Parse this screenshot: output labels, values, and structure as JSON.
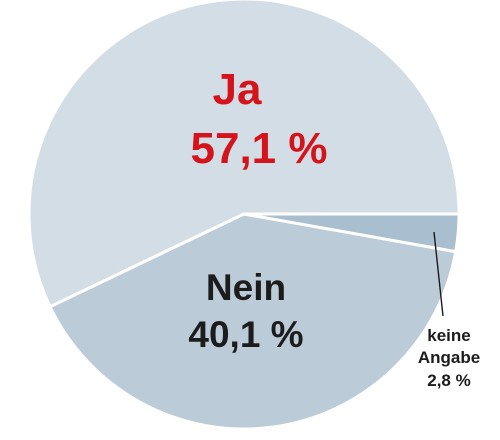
{
  "chart_data": {
    "type": "pie",
    "slices": [
      {
        "label": "Ja",
        "value": 57.1,
        "value_text": "57,1 %",
        "color": "#d3dde6",
        "label_color": "#d4131b"
      },
      {
        "label": "Nein",
        "value": 40.1,
        "value_text": "40,1 %",
        "color": "#bccbd8",
        "label_color": "#1c1c1c"
      },
      {
        "label": "keine Angabe",
        "label_lines": [
          "keine",
          "Angabe"
        ],
        "value": 2.8,
        "value_text": "2,8 %",
        "color": "#a9bfcf",
        "label_color": "#1c1c1c"
      }
    ]
  }
}
